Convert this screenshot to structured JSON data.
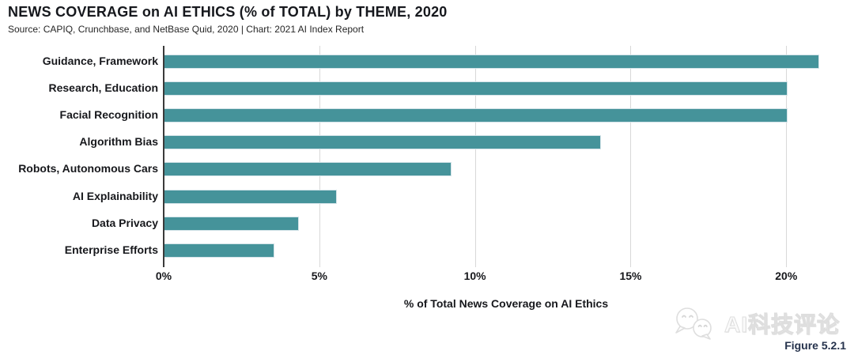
{
  "header": {
    "title": "NEWS COVERAGE on AI ETHICS (% of TOTAL) by THEME, 2020",
    "source": "Source: CAPIQ, Crunchbase, and NetBase Quid, 2020 | Chart: 2021 AI Index Report"
  },
  "chart_data": {
    "type": "bar",
    "orientation": "horizontal",
    "title": "NEWS COVERAGE on AI ETHICS (% of TOTAL) by THEME, 2020",
    "categories": [
      "Guidance, Framework",
      "Research, Education",
      "Facial Recognition",
      "Algorithm Bias",
      "Robots, Autonomous Cars",
      "AI Explainability",
      "Data Privacy",
      "Enterprise Efforts"
    ],
    "values": [
      21,
      20,
      20,
      14,
      9.2,
      5.5,
      4.3,
      3.5
    ],
    "xlabel": "% of Total News Coverage on AI Ethics",
    "ylabel": "",
    "x_ticks": [
      "0%",
      "5%",
      "10%",
      "15%",
      "20%"
    ],
    "x_tick_values": [
      0,
      5,
      10,
      15,
      20
    ],
    "xlim": [
      0,
      22
    ],
    "grid": true,
    "legend": false,
    "bar_color": "#45939A",
    "bar_border_color": "#d3e3e8",
    "gridline_color": "#d8d8d8",
    "axis_color": "#3a3a3a"
  },
  "footer": {
    "figure_label": "Figure 5.2.1",
    "watermark_text": "AI科技评论"
  }
}
